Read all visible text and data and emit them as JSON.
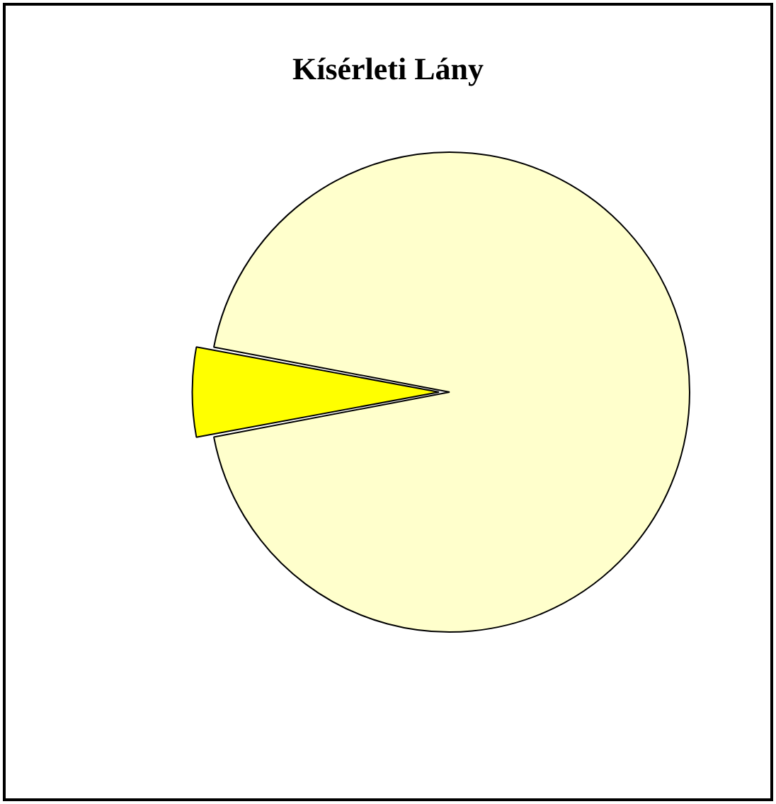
{
  "chart_data": {
    "type": "pie",
    "title": "Kísérleti Lány",
    "categories": [
      null,
      null
    ],
    "values": [
      94,
      6
    ],
    "colors": [
      "#ffffcc",
      "#ffff00"
    ],
    "legend": false
  }
}
